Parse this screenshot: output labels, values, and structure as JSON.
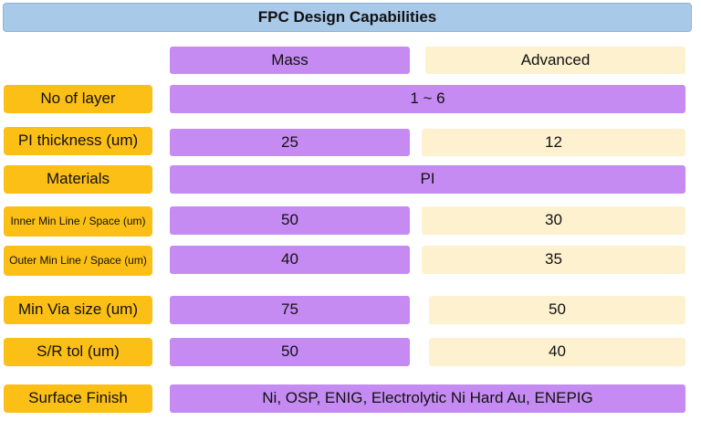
{
  "title": "FPC Design Capabilities",
  "columns": {
    "mass": "Mass",
    "advanced": "Advanced"
  },
  "rows": [
    {
      "label": "No of layer",
      "span": "1 ~ 6"
    },
    {
      "label": "PI thickness (um)",
      "mass": "25",
      "advanced": "12"
    },
    {
      "label": "Materials",
      "span": "PI"
    },
    {
      "label": "Inner Min Line / Space (um)",
      "mass": "50",
      "advanced": "30"
    },
    {
      "label": "Outer Min Line / Space (um)",
      "mass": "40",
      "advanced": "35"
    },
    {
      "label": "Min Via size (um)",
      "mass": "75",
      "advanced": "50"
    },
    {
      "label": "S/R tol (um)",
      "mass": "50",
      "advanced": "40"
    },
    {
      "label": "Surface Finish",
      "span": "Ni, OSP, ENIG, Electrolytic Ni Hard Au, ENEPIG"
    }
  ],
  "colors": {
    "title_bg": "#a9c9e9",
    "label_bg": "#fcbf16",
    "mass_bg": "#c58bf2",
    "advanced_bg": "#fdf1cf"
  }
}
